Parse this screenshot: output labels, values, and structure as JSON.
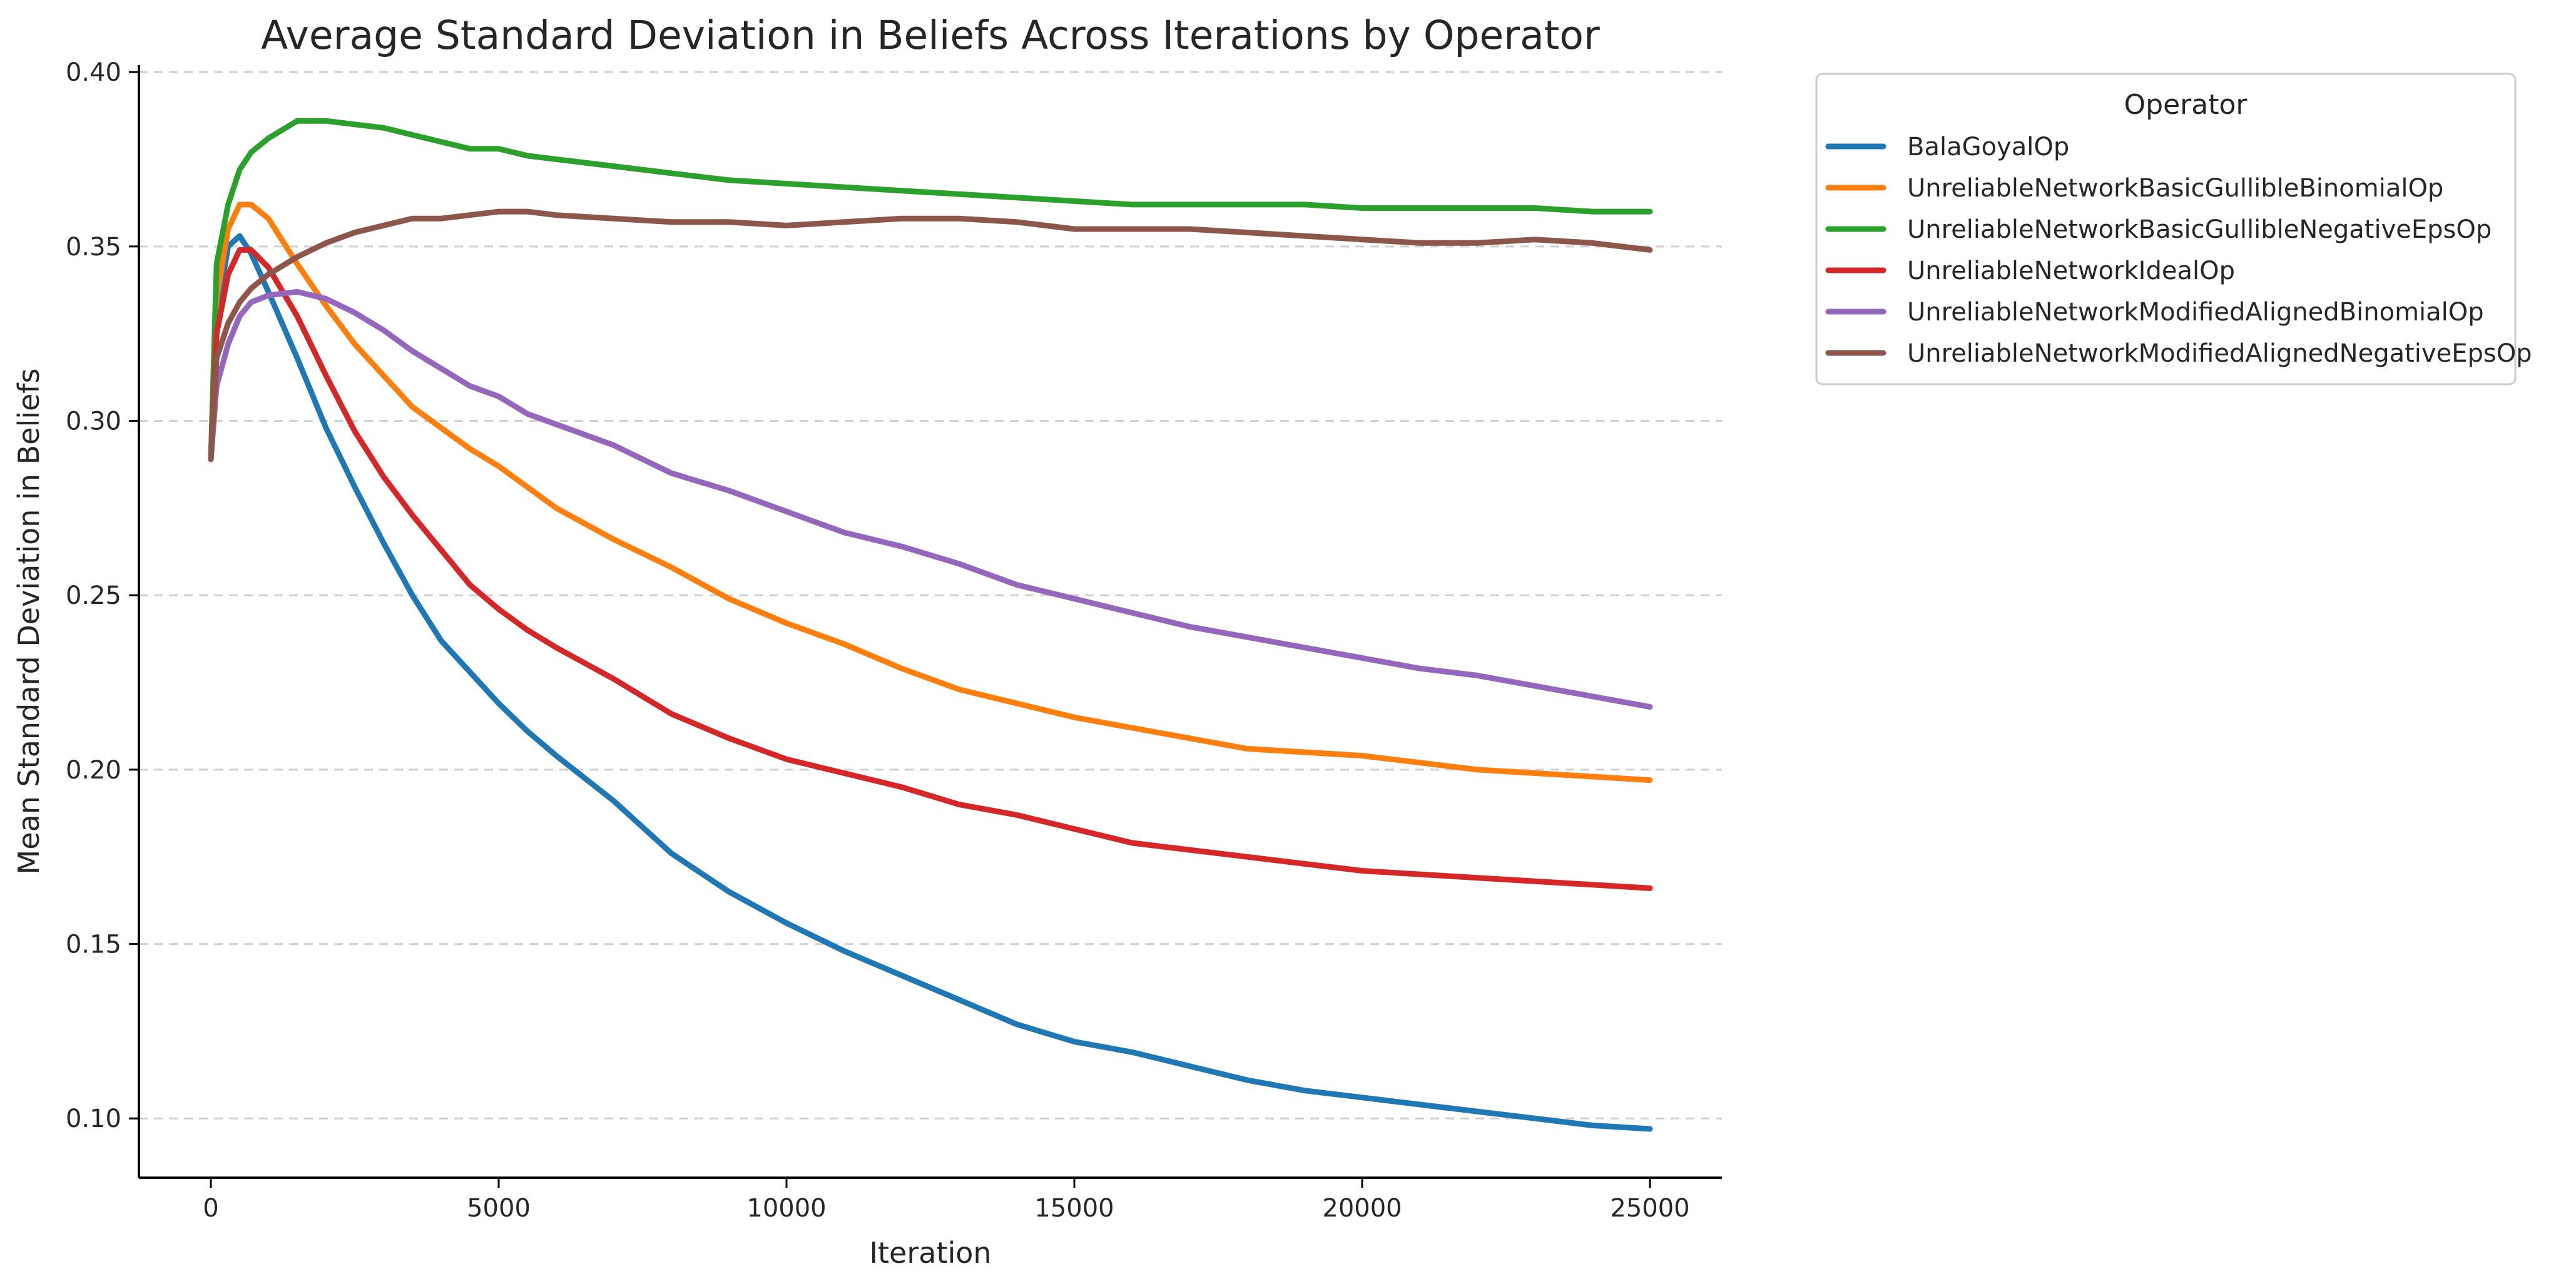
{
  "chart_data": {
    "type": "line",
    "title": "Average Standard Deviation in Beliefs Across Iterations by Operator",
    "xlabel": "Iteration",
    "ylabel": "Mean Standard Deviation in Beliefs",
    "xlim": [
      -1250,
      26250
    ],
    "ylim": [
      0.083,
      0.402
    ],
    "xticks": [
      0,
      5000,
      10000,
      15000,
      20000,
      25000
    ],
    "xtick_labels": [
      "0",
      "5000",
      "10000",
      "15000",
      "20000",
      "25000"
    ],
    "yticks": [
      0.1,
      0.15,
      0.2,
      0.25,
      0.3,
      0.35,
      0.4
    ],
    "ytick_labels": [
      "0.10",
      "0.15",
      "0.20",
      "0.25",
      "0.30",
      "0.35",
      "0.40"
    ],
    "grid": "horizontal dashed",
    "legend": {
      "title": "Operator",
      "position": "outside right, top"
    },
    "series": [
      {
        "name": "BalaGoyalOp",
        "color": "#1f77b4",
        "x": [
          0,
          100,
          300,
          500,
          700,
          1000,
          1500,
          2000,
          2500,
          3000,
          3500,
          4000,
          4500,
          5000,
          5500,
          6000,
          7000,
          8000,
          9000,
          10000,
          11000,
          12000,
          13000,
          14000,
          15000,
          16000,
          17000,
          18000,
          19000,
          20000,
          21000,
          22000,
          23000,
          24000,
          25000
        ],
        "y": [
          0.289,
          0.33,
          0.35,
          0.353,
          0.348,
          0.337,
          0.318,
          0.298,
          0.281,
          0.265,
          0.25,
          0.237,
          0.228,
          0.219,
          0.211,
          0.204,
          0.191,
          0.176,
          0.165,
          0.156,
          0.148,
          0.141,
          0.134,
          0.127,
          0.122,
          0.119,
          0.115,
          0.111,
          0.108,
          0.106,
          0.104,
          0.102,
          0.1,
          0.098,
          0.097
        ]
      },
      {
        "name": "UnreliableNetworkBasicGullibleBinomialOp",
        "color": "#ff7f0e",
        "x": [
          0,
          100,
          300,
          500,
          700,
          1000,
          1500,
          2000,
          2500,
          3000,
          3500,
          4000,
          4500,
          5000,
          5500,
          6000,
          7000,
          8000,
          9000,
          10000,
          11000,
          12000,
          13000,
          14000,
          15000,
          16000,
          17000,
          18000,
          19000,
          20000,
          21000,
          22000,
          23000,
          24000,
          25000
        ],
        "y": [
          0.289,
          0.335,
          0.355,
          0.362,
          0.362,
          0.358,
          0.345,
          0.333,
          0.322,
          0.313,
          0.304,
          0.298,
          0.292,
          0.287,
          0.281,
          0.275,
          0.266,
          0.258,
          0.249,
          0.242,
          0.236,
          0.229,
          0.223,
          0.219,
          0.215,
          0.212,
          0.209,
          0.206,
          0.205,
          0.204,
          0.202,
          0.2,
          0.199,
          0.198,
          0.197
        ]
      },
      {
        "name": "UnreliableNetworkBasicGullibleNegativeEpsOp",
        "color": "#2ca02c",
        "x": [
          0,
          100,
          300,
          500,
          700,
          1000,
          1500,
          2000,
          2500,
          3000,
          3500,
          4000,
          4500,
          5000,
          5500,
          6000,
          7000,
          8000,
          9000,
          10000,
          11000,
          12000,
          13000,
          14000,
          15000,
          16000,
          17000,
          18000,
          19000,
          20000,
          21000,
          22000,
          23000,
          24000,
          25000
        ],
        "y": [
          0.289,
          0.345,
          0.362,
          0.372,
          0.377,
          0.381,
          0.386,
          0.386,
          0.385,
          0.384,
          0.382,
          0.38,
          0.378,
          0.378,
          0.376,
          0.375,
          0.373,
          0.371,
          0.369,
          0.368,
          0.367,
          0.366,
          0.365,
          0.364,
          0.363,
          0.362,
          0.362,
          0.362,
          0.362,
          0.361,
          0.361,
          0.361,
          0.361,
          0.36,
          0.36
        ]
      },
      {
        "name": "UnreliableNetworkIdealOp",
        "color": "#d62728",
        "x": [
          0,
          100,
          300,
          500,
          700,
          1000,
          1500,
          2000,
          2500,
          3000,
          3500,
          4000,
          4500,
          5000,
          5500,
          6000,
          7000,
          8000,
          9000,
          10000,
          11000,
          12000,
          13000,
          14000,
          15000,
          16000,
          17000,
          18000,
          19000,
          20000,
          21000,
          22000,
          23000,
          24000,
          25000
        ],
        "y": [
          0.289,
          0.325,
          0.342,
          0.349,
          0.349,
          0.344,
          0.33,
          0.313,
          0.297,
          0.284,
          0.273,
          0.263,
          0.253,
          0.246,
          0.24,
          0.235,
          0.226,
          0.216,
          0.209,
          0.203,
          0.199,
          0.195,
          0.19,
          0.187,
          0.183,
          0.179,
          0.177,
          0.175,
          0.173,
          0.171,
          0.17,
          0.169,
          0.168,
          0.167,
          0.166
        ]
      },
      {
        "name": "UnreliableNetworkModifiedAlignedBinomialOp",
        "color": "#9467bd",
        "x": [
          0,
          100,
          300,
          500,
          700,
          1000,
          1500,
          2000,
          2500,
          3000,
          3500,
          4000,
          4500,
          5000,
          5500,
          6000,
          7000,
          8000,
          9000,
          10000,
          11000,
          12000,
          13000,
          14000,
          15000,
          16000,
          17000,
          18000,
          19000,
          20000,
          21000,
          22000,
          23000,
          24000,
          25000
        ],
        "y": [
          0.289,
          0.31,
          0.322,
          0.33,
          0.334,
          0.336,
          0.337,
          0.335,
          0.331,
          0.326,
          0.32,
          0.315,
          0.31,
          0.307,
          0.302,
          0.299,
          0.293,
          0.285,
          0.28,
          0.274,
          0.268,
          0.264,
          0.259,
          0.253,
          0.249,
          0.245,
          0.241,
          0.238,
          0.235,
          0.232,
          0.229,
          0.227,
          0.224,
          0.221,
          0.218
        ]
      },
      {
        "name": "UnreliableNetworkModifiedAlignedNegativeEpsOp",
        "color": "#8c564b",
        "x": [
          0,
          100,
          300,
          500,
          700,
          1000,
          1500,
          2000,
          2500,
          3000,
          3500,
          4000,
          4500,
          5000,
          5500,
          6000,
          7000,
          8000,
          9000,
          10000,
          11000,
          12000,
          13000,
          14000,
          15000,
          16000,
          17000,
          18000,
          19000,
          20000,
          21000,
          22000,
          23000,
          24000,
          25000
        ],
        "y": [
          0.289,
          0.318,
          0.328,
          0.334,
          0.338,
          0.342,
          0.347,
          0.351,
          0.354,
          0.356,
          0.358,
          0.358,
          0.359,
          0.36,
          0.36,
          0.359,
          0.358,
          0.357,
          0.357,
          0.356,
          0.357,
          0.358,
          0.358,
          0.357,
          0.355,
          0.355,
          0.355,
          0.354,
          0.353,
          0.352,
          0.351,
          0.351,
          0.352,
          0.351,
          0.349
        ]
      }
    ]
  }
}
